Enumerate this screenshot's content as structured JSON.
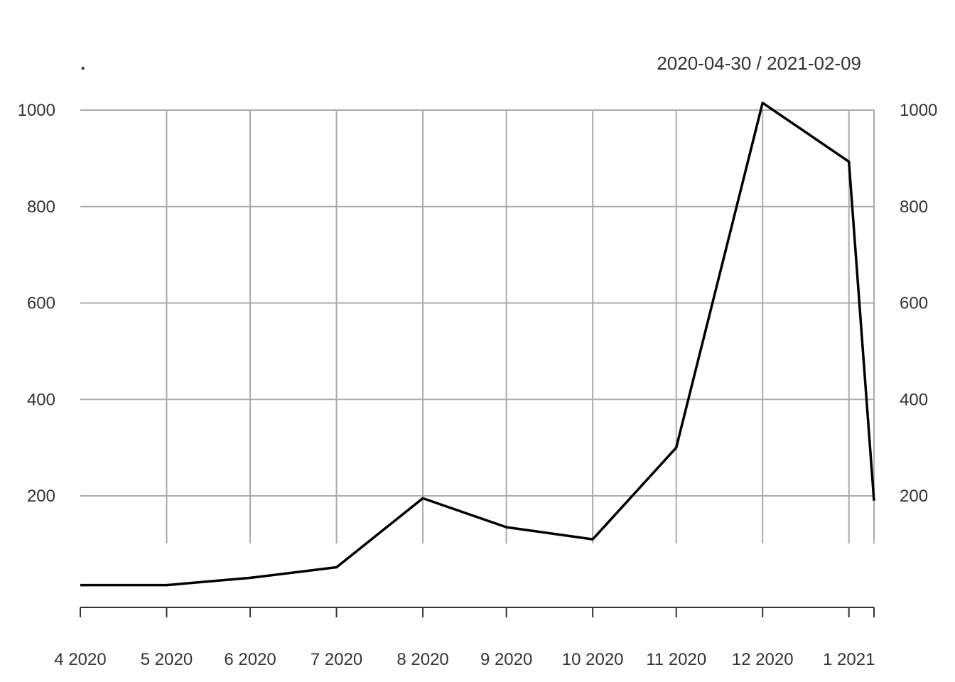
{
  "chart_data": {
    "type": "line",
    "title": ".",
    "date_range_label": "2020-04-30 / 2021-02-09",
    "x": [
      "2020-04-30",
      "2020-05-31",
      "2020-06-30",
      "2020-07-31",
      "2020-08-31",
      "2020-09-30",
      "2020-10-31",
      "2020-11-30",
      "2020-12-31",
      "2021-01-31",
      "2021-02-09"
    ],
    "series": [
      {
        "values": [
          15,
          15,
          30,
          52,
          195,
          135,
          110,
          300,
          1015,
          893,
          190
        ]
      }
    ],
    "x_ticks": [
      {
        "date": "2020-04-30",
        "label": "4 2020"
      },
      {
        "date": "2020-05-31",
        "label": "5 2020"
      },
      {
        "date": "2020-06-30",
        "label": "6 2020"
      },
      {
        "date": "2020-07-31",
        "label": "7 2020"
      },
      {
        "date": "2020-08-31",
        "label": "8 2020"
      },
      {
        "date": "2020-09-30",
        "label": "9 2020"
      },
      {
        "date": "2020-10-31",
        "label": "10 2020"
      },
      {
        "date": "2020-11-30",
        "label": "11 2020"
      },
      {
        "date": "2020-12-31",
        "label": "12 2020"
      },
      {
        "date": "2021-01-31",
        "label": "1 2021"
      }
    ],
    "y_ticks": [
      200,
      400,
      600,
      800,
      1000
    ],
    "ylim": [
      -40,
      1020
    ],
    "grid": true,
    "line_color": "#000000",
    "grid_color": "#aaaaaa"
  }
}
